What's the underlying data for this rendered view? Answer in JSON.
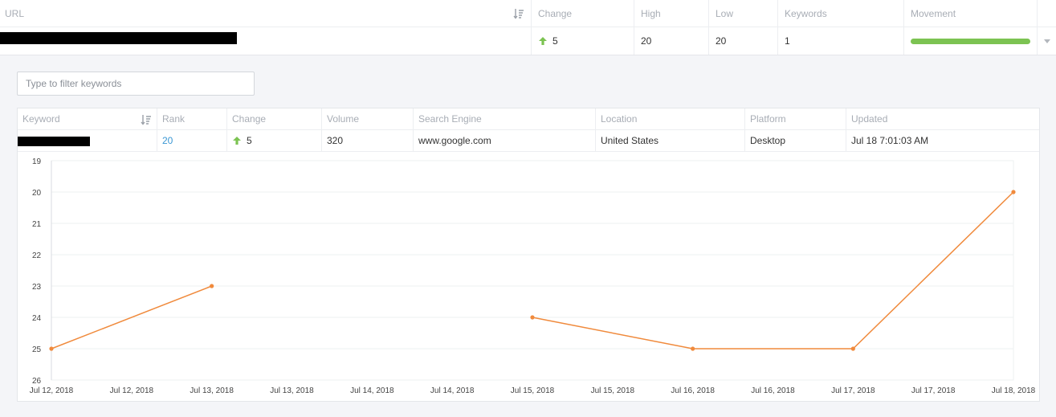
{
  "url_table": {
    "headers": {
      "url": "URL",
      "change": "Change",
      "high": "High",
      "low": "Low",
      "keywords": "Keywords",
      "movement": "Movement"
    },
    "row": {
      "change": "5",
      "high": "20",
      "low": "20",
      "keywords": "1",
      "movement_fraction": 1.0
    }
  },
  "filter": {
    "placeholder": "Type to filter keywords"
  },
  "keywords_table": {
    "headers": {
      "keyword": "Keyword",
      "rank": "Rank",
      "change": "Change",
      "volume": "Volume",
      "search_engine": "Search Engine",
      "location": "Location",
      "platform": "Platform",
      "updated": "Updated"
    },
    "row": {
      "rank": "20",
      "change": "5",
      "volume": "320",
      "search_engine": "www.google.com",
      "location": "United States",
      "platform": "Desktop",
      "updated": "Jul 18 7:01:03 AM"
    }
  },
  "colors": {
    "accent_green": "#7cc352",
    "line_orange": "#f08a3c",
    "link_blue": "#3a97d4"
  },
  "chart_data": {
    "type": "line",
    "title": "",
    "xlabel": "",
    "ylabel": "",
    "y_inverted": true,
    "ylim": [
      19,
      26
    ],
    "y_ticks": [
      "19",
      "20",
      "21",
      "22",
      "23",
      "24",
      "25",
      "26"
    ],
    "x_ticks": [
      "Jul 12, 2018",
      "Jul 12, 2018",
      "Jul 13, 2018",
      "Jul 13, 2018",
      "Jul 14, 2018",
      "Jul 14, 2018",
      "Jul 15, 2018",
      "Jul 15, 2018",
      "Jul 16, 2018",
      "Jul 16, 2018",
      "Jul 17, 2018",
      "Jul 17, 2018",
      "Jul 18, 2018"
    ],
    "x_range": [
      "2018-07-12",
      "2018-07-18"
    ],
    "grid": true,
    "series": [
      {
        "points": [
          {
            "x": "2018-07-12",
            "y": 25
          },
          {
            "x": "2018-07-13",
            "y": 23
          },
          {
            "x": "2018-07-14",
            "y": null
          },
          {
            "x": "2018-07-15",
            "y": 24
          },
          {
            "x": "2018-07-16",
            "y": 25
          },
          {
            "x": "2018-07-17",
            "y": 25
          },
          {
            "x": "2018-07-18",
            "y": 20
          }
        ]
      }
    ]
  }
}
